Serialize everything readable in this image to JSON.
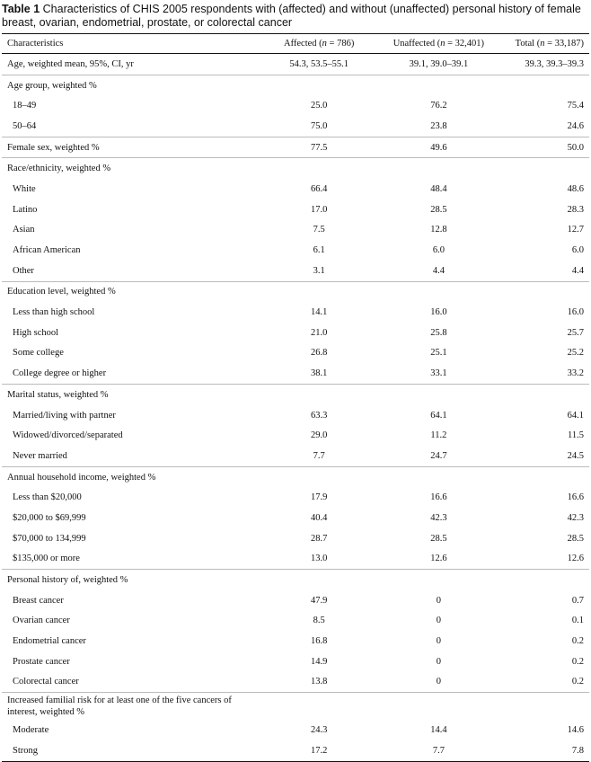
{
  "caption": {
    "label": "Table 1",
    "text": "Characteristics of CHIS 2005 respondents with (affected) and without (unaffected) personal history of female breast, ovarian, endometrial, prostate, or colorectal cancer"
  },
  "headers": {
    "characteristics": "Characteristics",
    "affected_prefix": "Affected (",
    "affected_n": "n",
    "affected_suffix": " = 786)",
    "unaffected_prefix": "Unaffected (",
    "unaffected_n": "n",
    "unaffected_suffix": " = 32,401)",
    "total_prefix": "Total (",
    "total_n": "n",
    "total_suffix": " = 33,187)"
  },
  "rows": [
    {
      "label": "Age, weighted mean, 95%, CI, yr",
      "affected": "54.3, 53.5–55.1",
      "unaffected": "39.1, 39.0–39.1",
      "total": "39.3, 39.3–39.3"
    },
    {
      "label": "Age group, weighted %",
      "affected": "",
      "unaffected": "",
      "total": ""
    },
    {
      "label": "18–49",
      "affected": "25.0",
      "unaffected": "76.2",
      "total": "75.4"
    },
    {
      "label": "50–64",
      "affected": "75.0",
      "unaffected": "23.8",
      "total": "24.6"
    },
    {
      "label": "Female sex, weighted %",
      "affected": "77.5",
      "unaffected": "49.6",
      "total": "50.0"
    },
    {
      "label": "Race/ethnicity, weighted %",
      "affected": "",
      "unaffected": "",
      "total": ""
    },
    {
      "label": "White",
      "affected": "66.4",
      "unaffected": "48.4",
      "total": "48.6"
    },
    {
      "label": "Latino",
      "affected": "17.0",
      "unaffected": "28.5",
      "total": "28.3"
    },
    {
      "label": "Asian",
      "affected": "7.5",
      "unaffected": "12.8",
      "total": "12.7"
    },
    {
      "label": "African American",
      "affected": "6.1",
      "unaffected": "6.0",
      "total": "6.0"
    },
    {
      "label": "Other",
      "affected": "3.1",
      "unaffected": "4.4",
      "total": "4.4"
    },
    {
      "label": "Education level, weighted %",
      "affected": "",
      "unaffected": "",
      "total": ""
    },
    {
      "label": "Less than high school",
      "affected": "14.1",
      "unaffected": "16.0",
      "total": "16.0"
    },
    {
      "label": "High school",
      "affected": "21.0",
      "unaffected": "25.8",
      "total": "25.7"
    },
    {
      "label": "Some college",
      "affected": "26.8",
      "unaffected": "25.1",
      "total": "25.2"
    },
    {
      "label": "College degree or higher",
      "affected": "38.1",
      "unaffected": "33.1",
      "total": "33.2"
    },
    {
      "label": "Marital status, weighted %",
      "affected": "",
      "unaffected": "",
      "total": ""
    },
    {
      "label": "Married/living with partner",
      "affected": "63.3",
      "unaffected": "64.1",
      "total": "64.1"
    },
    {
      "label": "Widowed/divorced/separated",
      "affected": "29.0",
      "unaffected": "11.2",
      "total": "11.5"
    },
    {
      "label": "Never married",
      "affected": "7.7",
      "unaffected": "24.7",
      "total": "24.5"
    },
    {
      "label": "Annual household income, weighted %",
      "affected": "",
      "unaffected": "",
      "total": ""
    },
    {
      "label": "Less than $20,000",
      "affected": "17.9",
      "unaffected": "16.6",
      "total": "16.6"
    },
    {
      "label": "$20,000 to $69,999",
      "affected": "40.4",
      "unaffected": "42.3",
      "total": "42.3"
    },
    {
      "label": "$70,000 to 134,999",
      "affected": "28.7",
      "unaffected": "28.5",
      "total": "28.5"
    },
    {
      "label": "$135,000 or more",
      "affected": "13.0",
      "unaffected": "12.6",
      "total": "12.6"
    },
    {
      "label": "Personal history of, weighted %",
      "affected": "",
      "unaffected": "",
      "total": ""
    },
    {
      "label": "Breast cancer",
      "affected": "47.9",
      "unaffected": "0",
      "total": "0.7"
    },
    {
      "label": "Ovarian cancer",
      "affected": "8.5",
      "unaffected": "0",
      "total": "0.1"
    },
    {
      "label": "Endometrial cancer",
      "affected": "16.8",
      "unaffected": "0",
      "total": "0.2"
    },
    {
      "label": "Prostate cancer",
      "affected": "14.9",
      "unaffected": "0",
      "total": "0.2"
    },
    {
      "label": "Colorectal cancer",
      "affected": "13.8",
      "unaffected": "0",
      "total": "0.2"
    },
    {
      "label": "Increased familial risk for at least one of the five cancers of interest, weighted %",
      "affected": "",
      "unaffected": "",
      "total": ""
    },
    {
      "label": "Moderate",
      "affected": "24.3",
      "unaffected": "14.4",
      "total": "14.6"
    },
    {
      "label": "Strong",
      "affected": "17.2",
      "unaffected": "7.7",
      "total": "7.8"
    }
  ]
}
